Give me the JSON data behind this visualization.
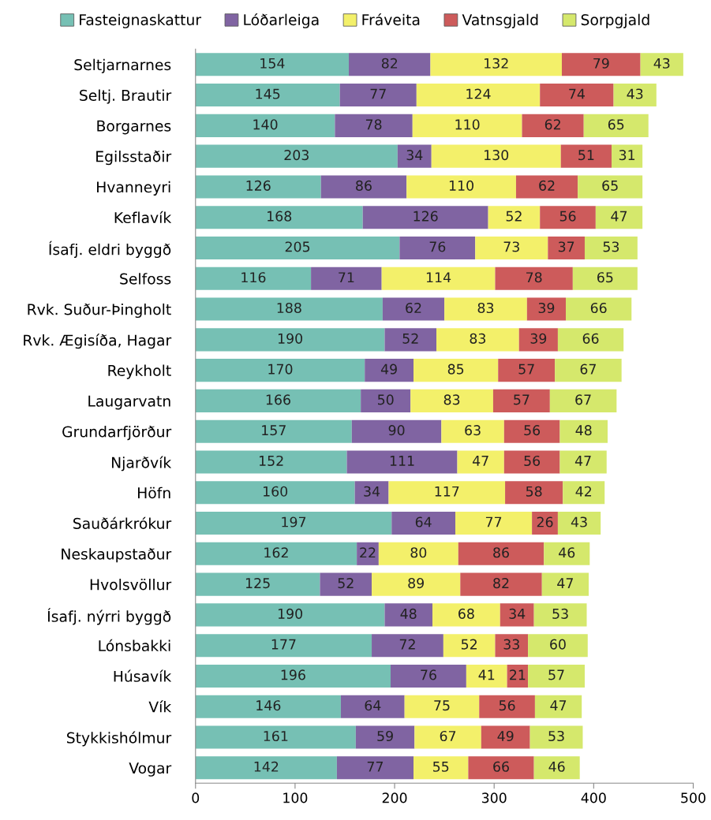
{
  "chart_data": {
    "type": "bar",
    "orientation": "horizontal",
    "stacked": true,
    "data_labels": true,
    "legend": "top",
    "grid": false,
    "categories": [
      "Seltjarnarnes",
      "Seltj. Brautir",
      "Borgarnes",
      "Egilsstaðir",
      "Hvanneyri",
      "Keflavík",
      "Ísafj. eldri byggð",
      "Selfoss",
      "Rvk. Suður-Þingholt",
      "Rvk. Ægisíða, Hagar",
      "Reykholt",
      "Laugarvatn",
      "Grundarfjörður",
      "Njarðvík",
      "Höfn",
      "Sauðárkrókur",
      "Neskaupstaður",
      "Hvolsvöllur",
      "Ísafj. nýrri byggð",
      "Lónsbakki",
      "Húsavík",
      "Vík",
      "Stykkishólmur",
      "Vogar"
    ],
    "xlim": [
      0,
      500
    ],
    "xticks": [
      0,
      100,
      200,
      300,
      400,
      500
    ],
    "series": [
      {
        "name": "Fasteignaskattur",
        "color": "#76c0b4",
        "values": [
          154,
          145,
          140,
          203,
          126,
          168,
          205,
          116,
          188,
          190,
          170,
          166,
          157,
          152,
          160,
          197,
          162,
          125,
          190,
          177,
          196,
          146,
          161,
          142
        ]
      },
      {
        "name": "Lóðarleiga",
        "color": "#8064a2",
        "values": [
          82,
          77,
          78,
          34,
          86,
          126,
          76,
          71,
          62,
          52,
          49,
          50,
          90,
          111,
          34,
          64,
          22,
          52,
          48,
          72,
          76,
          64,
          59,
          77
        ]
      },
      {
        "name": "Fráveita",
        "color": "#f3f06a",
        "values": [
          132,
          124,
          110,
          130,
          110,
          52,
          73,
          114,
          83,
          83,
          85,
          83,
          63,
          47,
          117,
          77,
          80,
          89,
          68,
          52,
          41,
          75,
          67,
          55
        ]
      },
      {
        "name": "Vatnsgjald",
        "color": "#cd5b5b",
        "values": [
          79,
          74,
          62,
          51,
          62,
          56,
          37,
          78,
          39,
          39,
          57,
          57,
          56,
          56,
          58,
          26,
          86,
          82,
          34,
          33,
          21,
          56,
          49,
          66
        ]
      },
      {
        "name": "Sorpgjald",
        "color": "#d5e86c",
        "values": [
          43,
          43,
          65,
          31,
          65,
          47,
          53,
          65,
          66,
          66,
          67,
          67,
          48,
          47,
          42,
          43,
          46,
          47,
          53,
          60,
          57,
          47,
          53,
          46
        ]
      }
    ]
  }
}
